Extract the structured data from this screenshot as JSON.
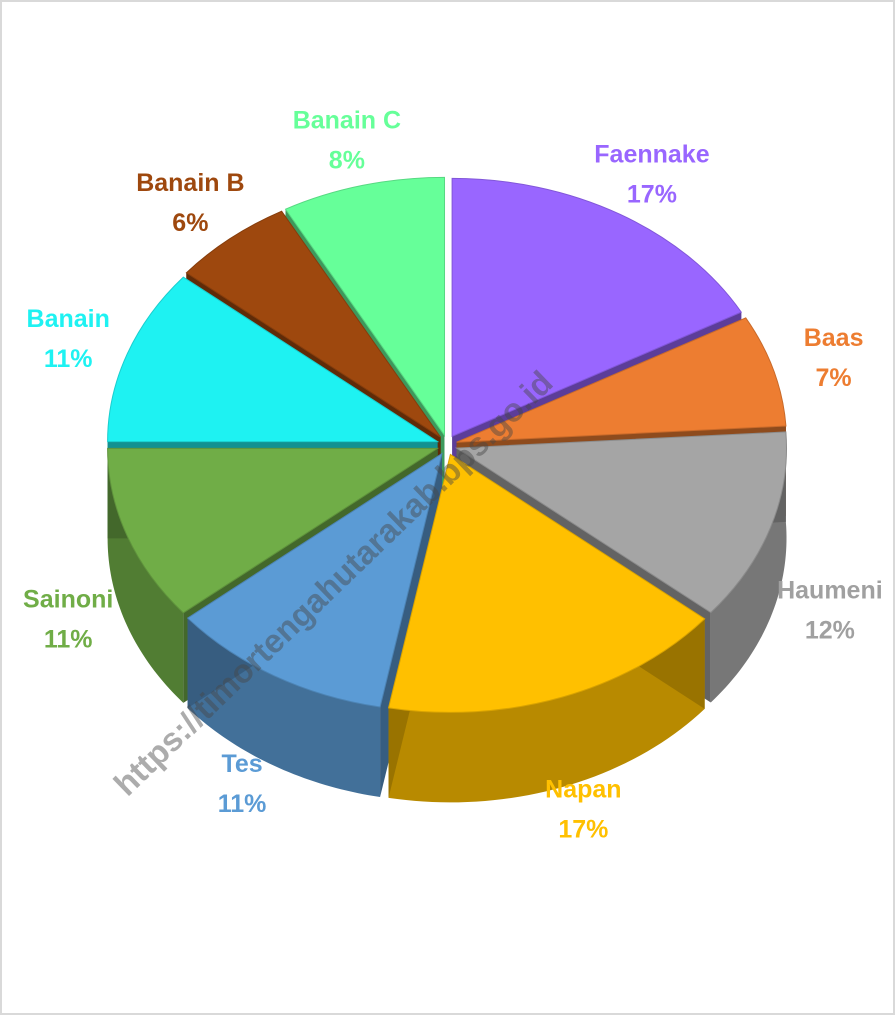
{
  "chart_data": {
    "type": "pie",
    "categories": [
      "Faennake",
      "Baas",
      "Haumeni",
      "Napan",
      "Tes",
      "Sainoni",
      "Banain",
      "Banain B",
      "Banain C"
    ],
    "values": [
      17,
      7,
      12,
      17,
      11,
      11,
      11,
      6,
      8
    ],
    "value_labels": [
      "17%",
      "7%",
      "12%",
      "17%",
      "11%",
      "11%",
      "11%",
      "6%",
      "8%"
    ],
    "colors": [
      "#9966ff",
      "#ed7d31",
      "#a5a5a5",
      "#ffc000",
      "#5b9bd5",
      "#70ad47",
      "#1ef2f2",
      "#9e480e",
      "#66ff99"
    ],
    "watermark": "https://timortengahutarakab.bps.go.id"
  }
}
